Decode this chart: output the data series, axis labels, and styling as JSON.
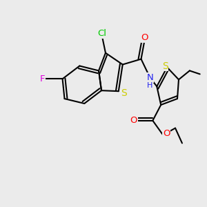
{
  "bg_color": "#ebebeb",
  "bond_color": "#000000",
  "bond_lw": 1.5,
  "atom_colors": {
    "Cl": "#00cc00",
    "S": "#cccc00",
    "F": "#dd00dd",
    "O": "#ff0000",
    "N": "#2222ee",
    "H": "#2222ee",
    "C": "#000000"
  }
}
